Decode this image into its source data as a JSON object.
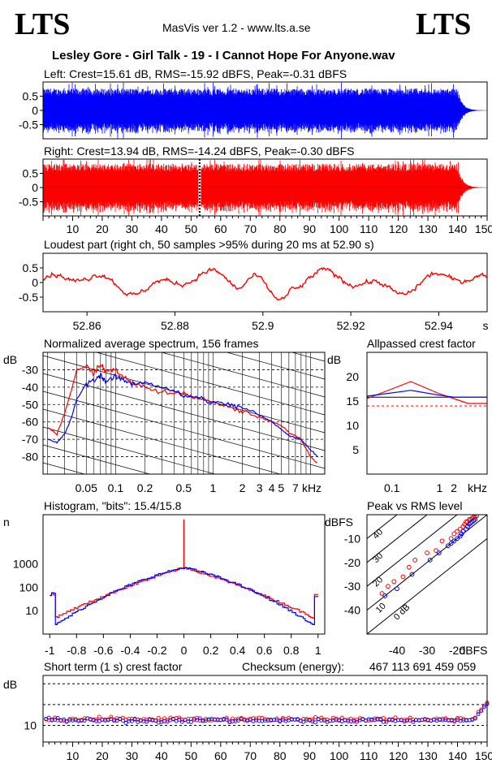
{
  "header": {
    "logo_left": "LTS",
    "logo_right": "LTS",
    "app_title": "MasVis ver 1.2 - www.lts.a.se",
    "file_title": "Lesley Gore - Girl Talk - 19 - I Cannot Hope For Anyone.wav"
  },
  "colors": {
    "left": "#0000ff",
    "right": "#ff0000",
    "frame": "#000000"
  },
  "chart_data": [
    {
      "id": "left",
      "type": "area",
      "title": "Left: Crest=15.61 dB, RMS=-15.92 dBFS, Peak=-0.31 dBFS",
      "yticks": [
        "0.5",
        "0",
        "-0.5"
      ],
      "ylim": [
        -1,
        1
      ],
      "xlim": [
        0,
        150
      ],
      "duration_s": 150,
      "fade_start_s": 140,
      "envelope_level": 0.72
    },
    {
      "id": "right",
      "type": "area",
      "title": "Right: Crest=13.94 dB, RMS=-14.24 dBFS, Peak=-0.30 dBFS",
      "yticks": [
        "0.5",
        "0",
        "-0.5"
      ],
      "xticks": [
        "10",
        "20",
        "30",
        "40",
        "50",
        "60",
        "70",
        "80",
        "90",
        "100",
        "110",
        "120",
        "130",
        "140",
        "150s"
      ],
      "ylim": [
        -1,
        1
      ],
      "xlim": [
        0,
        150
      ],
      "duration_s": 150,
      "fade_start_s": 140,
      "envelope_level": 0.78,
      "marker_s": 52.9
    },
    {
      "id": "loudest",
      "type": "line",
      "title": "Loudest part (right ch, 50 samples >95% during 20 ms at 52.90 s)",
      "yticks": [
        "0.5",
        "0",
        "-0.5"
      ],
      "xticks": [
        "52.86",
        "52.88",
        "52.9",
        "52.92",
        "52.94",
        "s"
      ],
      "ylim": [
        -1,
        1
      ],
      "xlim": [
        52.85,
        52.951
      ]
    },
    {
      "id": "spectrum",
      "type": "line",
      "title": "Normalized average spectrum, 156 frames",
      "ylabel": "dB",
      "yticks": [
        "-30",
        "-40",
        "-50",
        "-60",
        "-70",
        "-80"
      ],
      "xticks": [
        "0.05",
        "0.1",
        "0.2",
        "0.5",
        "1",
        "2",
        "3",
        "4",
        "5",
        "7",
        "kHz"
      ],
      "ylim": [
        -90,
        -20
      ],
      "series": [
        {
          "name": "",
          "color": "red",
          "x": [
            0.02,
            0.025,
            0.03,
            0.035,
            0.04,
            0.05,
            0.06,
            0.07,
            0.08,
            0.1,
            0.12,
            0.15,
            0.2,
            0.3,
            0.5,
            0.7,
            1,
            1.5,
            2,
            3,
            4,
            5,
            6,
            7,
            8,
            10,
            12
          ],
          "y": [
            -63,
            -67,
            -55,
            -42,
            -30,
            -28,
            -32,
            -27,
            -31,
            -30,
            -34,
            -38,
            -40,
            -43,
            -44,
            -46,
            -49,
            -52,
            -54,
            -57,
            -60,
            -62,
            -66,
            -68,
            -70,
            -80,
            -84
          ]
        },
        {
          "name": "",
          "color": "blue",
          "x": [
            0.02,
            0.025,
            0.03,
            0.035,
            0.04,
            0.05,
            0.06,
            0.07,
            0.08,
            0.1,
            0.12,
            0.15,
            0.2,
            0.3,
            0.5,
            0.7,
            1,
            1.5,
            2,
            3,
            4,
            5,
            6,
            7,
            8,
            10,
            12
          ],
          "y": [
            -70,
            -72,
            -67,
            -58,
            -47,
            -38,
            -36,
            -33,
            -37,
            -34,
            -36,
            -38,
            -37,
            -40,
            -45,
            -46,
            -49,
            -50,
            -52,
            -56,
            -60,
            -64,
            -68,
            -69,
            -70,
            -76,
            -80
          ]
        }
      ]
    },
    {
      "id": "allpassed",
      "type": "line",
      "title": "Allpassed crest factor",
      "ylabel": "dB",
      "yticks": [
        "20",
        "15",
        "10",
        "5"
      ],
      "xticks": [
        "0.1",
        "1",
        "2",
        "kHz"
      ],
      "ylim": [
        0,
        25
      ],
      "series": [
        {
          "name": "",
          "color": "red",
          "x": [
            0.03,
            0.25,
            1,
            2,
            4,
            10
          ],
          "y": [
            15.5,
            19,
            16.5,
            15.5,
            14.5,
            14.5
          ]
        },
        {
          "name": "",
          "color": "blue",
          "x": [
            0.03,
            0.25,
            1,
            2,
            4,
            10
          ],
          "y": [
            16,
            17.2,
            16.2,
            15.8,
            15.8,
            15.8
          ]
        }
      ],
      "reference_lines": [
        {
          "color": "red",
          "y": 14
        },
        {
          "color": "black",
          "y": 15.8
        }
      ]
    },
    {
      "id": "histogram",
      "type": "line",
      "title": "Histogram, \"bits\": 15.4/15.8",
      "ylabel": "n",
      "yticks": [
        "1000",
        "100",
        "10"
      ],
      "xticks": [
        "-1",
        "-0.8",
        "-0.6",
        "-0.4",
        "-0.2",
        "0",
        "0.2",
        "0.4",
        "0.6",
        "0.8",
        "1"
      ],
      "xlim": [
        -1.05,
        1.05
      ],
      "yscale": "log",
      "peak_count": 700,
      "center_spike": 80000
    },
    {
      "id": "peakrms",
      "type": "scatter",
      "title": "Peak vs RMS level",
      "ylabel": "dBFS",
      "xlabel": "dBFS",
      "yticks": [
        "-10",
        "-20",
        "-30",
        "-40"
      ],
      "xticks": [
        "-40",
        "-30",
        "-20",
        "dBFS"
      ],
      "xlim": [
        -50,
        -10
      ],
      "ylim": [
        -50,
        0
      ],
      "diagonal_labels": [
        "40",
        "30",
        "20",
        "10",
        "0 dB"
      ],
      "series": [
        {
          "name": "",
          "color": "red",
          "x": [
            -45,
            -43,
            -41,
            -38,
            -36,
            -34,
            -30,
            -27,
            -25,
            -22,
            -21,
            -20,
            -19,
            -18,
            -17.5,
            -17,
            -16.5,
            -16,
            -15.5,
            -15,
            -14.5,
            -14,
            -13.5
          ],
          "y": [
            -33,
            -30,
            -28,
            -26,
            -22,
            -19,
            -16,
            -15,
            -11,
            -10,
            -8,
            -7,
            -6,
            -5,
            -4,
            -3,
            -3,
            -2,
            -2,
            -1.5,
            -1,
            -1,
            -0.5
          ]
        },
        {
          "name": "",
          "color": "blue",
          "x": [
            -44,
            -40,
            -35,
            -29,
            -26,
            -23,
            -22,
            -21,
            -20,
            -19,
            -18.5,
            -18,
            -17,
            -16.5,
            -16,
            -15.5,
            -15,
            -14.5,
            -14
          ],
          "y": [
            -34,
            -31,
            -25,
            -19,
            -16,
            -13,
            -12,
            -11,
            -10,
            -9,
            -8,
            -7,
            -6,
            -5,
            -4,
            -3.5,
            -3,
            -2.5,
            -2
          ]
        }
      ]
    },
    {
      "id": "shortcrest",
      "type": "scatter",
      "title": "Short term (1 s) crest factor",
      "checksum_label": "Checksum (energy):",
      "checksum_value": "467 113 691 459 059",
      "ylabel": "dB",
      "yticks": [
        "10"
      ],
      "xticks": [
        "10",
        "20",
        "30",
        "40",
        "50",
        "60",
        "70",
        "80",
        "90",
        "100",
        "110",
        "120",
        "130",
        "140",
        "150s"
      ],
      "xlim": [
        0,
        150
      ],
      "ylim": [
        6,
        22
      ],
      "reference_lines": [
        10,
        15,
        20
      ],
      "mean_db": 11.5
    }
  ]
}
